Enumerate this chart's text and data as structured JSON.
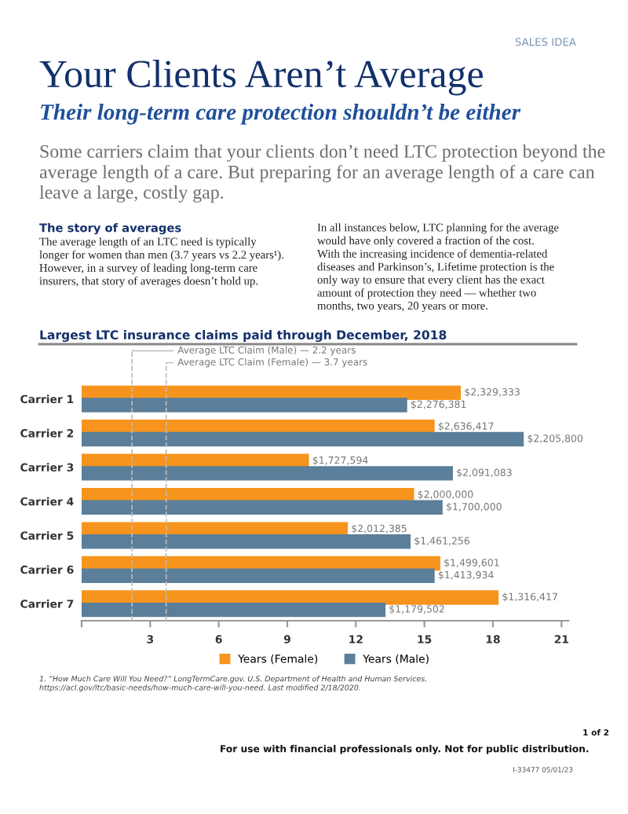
{
  "chart_data": {
    "type": "bar",
    "orientation": "horizontal",
    "title": "Largest LTC insurance claims paid through December, 2018",
    "categories": [
      "Carrier 1",
      "Carrier 2",
      "Carrier 3",
      "Carrier 4",
      "Carrier 5",
      "Carrier 6",
      "Carrier 7"
    ],
    "series": [
      {
        "name": "Years (Female)",
        "color": "#f7941d",
        "values": [
          16.55,
          15.4,
          9.9,
          14.5,
          11.6,
          15.65,
          18.2
        ]
      },
      {
        "name": "Years (Male)",
        "color": "#5b7f9a",
        "values": [
          14.2,
          19.3,
          16.2,
          15.75,
          14.35,
          15.4,
          13.25
        ]
      }
    ],
    "xlim": [
      0,
      21.3
    ],
    "xticks": [
      {
        "value": 0,
        "label": null
      },
      3,
      6,
      9,
      12,
      15,
      18,
      21
    ],
    "ref_lines": [
      {
        "axis": "x",
        "value": 2.2,
        "label": "Average LTC Claim (Male) — 2.2 years",
        "color": "#bbbbbb",
        "line_style": "dashed"
      },
      {
        "axis": "x",
        "value": 3.7,
        "label": "Average LTC Claim (Female) — 3.7 years",
        "color": "#bbbbbb",
        "line_style": "dashed"
      }
    ],
    "legend": "bottom",
    "grid": false,
    "annotations": [
      "SALES IDEA",
      "Your Clients Aren’t Average",
      "Their long-term care protection shouldn’t be either",
      "Some carriers claim that your clients don’t need LTC protection beyond the\naverage length of a care. But preparing for an average length of a care can\nleave a large, costly gap.",
      "The story of averages",
      "The average length of an LTC need is typically\nlonger for women than men (3.7 years vs 2.2 years¹).\nHowever, in a survey of leading long-term care\ninsurers, that story of averages doesn’t hold up.",
      "In all instances below, LTC planning for the average\nwould have only covered a fraction of the cost.\nWith the increasing incidence of dementia-related\ndiseases and Parkinson’s, Lifetime protection is the\nonly way to ensure that every client has the exact\namount of protection they need — whether two\nmonths, two years, 20 years or more.",
      "1. “How Much Care Will You Need?” LongTermCare.gov. U.S. Department of Health and Human Services.\nhttps://acl.gov/ltc/basic-needs/how-much-care-will-you-need. Last modified 2/18/2020.",
      "For use with financial professionals only. Not for public distribution.",
      "1 of 2",
      "I-33477 05/01/23",
      {
        "text": "$2,329,333",
        "x": 16.55,
        "y": "Carrier 1"
      },
      {
        "text": "$2,276,381",
        "x": 14.2,
        "y": "Carrier 1"
      },
      {
        "text": "$2,636,417",
        "x": 15.4,
        "y": "Carrier 2"
      },
      {
        "text": "$2,205,800",
        "x": 19.3,
        "y": "Carrier 2"
      },
      {
        "text": "$1,727,594",
        "x": 9.9,
        "y": "Carrier 3"
      },
      {
        "text": "$2,091,083",
        "x": 16.2,
        "y": "Carrier 3"
      },
      {
        "text": "$2,000,000",
        "x": 14.5,
        "y": "Carrier 4"
      },
      {
        "text": "$1,700,000",
        "x": 15.75,
        "y": "Carrier 4"
      },
      {
        "text": "$2,012,385",
        "x": 11.6,
        "y": "Carrier 5"
      },
      {
        "text": "$1,461,256",
        "x": 14.35,
        "y": "Carrier 5"
      },
      {
        "text": "$1,499,601",
        "x": 15.65,
        "y": "Carrier 6"
      },
      {
        "text": "$1,413,934",
        "x": 15.4,
        "y": "Carrier 6"
      },
      {
        "text": "$1,316,417",
        "x": 18.2,
        "y": "Carrier 7"
      },
      {
        "text": "$1,179,502",
        "x": 13.25,
        "y": "Carrier 7"
      }
    ]
  }
}
